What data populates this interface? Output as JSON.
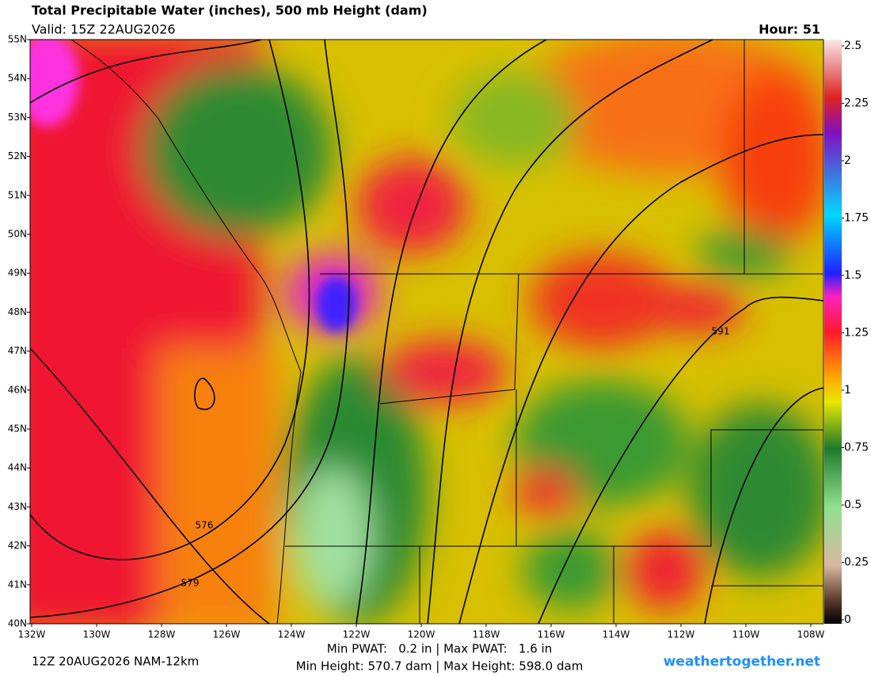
{
  "header": {
    "title": "Total Precipitable Water (inches), 500 mb Height (dam)",
    "valid": "Valid: 15Z 22AUG2026",
    "hour": "Hour: 51"
  },
  "map": {
    "lat_labels": [
      "55N",
      "54N",
      "53N",
      "52N",
      "51N",
      "50N",
      "49N",
      "48N",
      "47N",
      "46N",
      "45N",
      "44N",
      "43N",
      "42N",
      "41N",
      "40N"
    ],
    "lon_labels": [
      "132W",
      "130W",
      "128W",
      "126W",
      "124W",
      "122W",
      "120W",
      "118W",
      "116W",
      "114W",
      "112W",
      "110W",
      "108W"
    ],
    "contour_labels": [
      "576",
      "579",
      "591"
    ]
  },
  "colorbar": {
    "range": [
      0,
      2.5
    ],
    "ticks": [
      2.5,
      2.25,
      2,
      1.75,
      1.5,
      1.25,
      1,
      0.75,
      0.5,
      0.25,
      0
    ]
  },
  "footer": {
    "run": "12Z 20AUG2026 NAM-12km",
    "pwat": "Min PWAT:   0.2 in | Max PWAT:   1.6 in",
    "height": "Min Height: 570.7 dam | Max Height: 598.0 dam",
    "site": "weathertogether.net"
  }
}
